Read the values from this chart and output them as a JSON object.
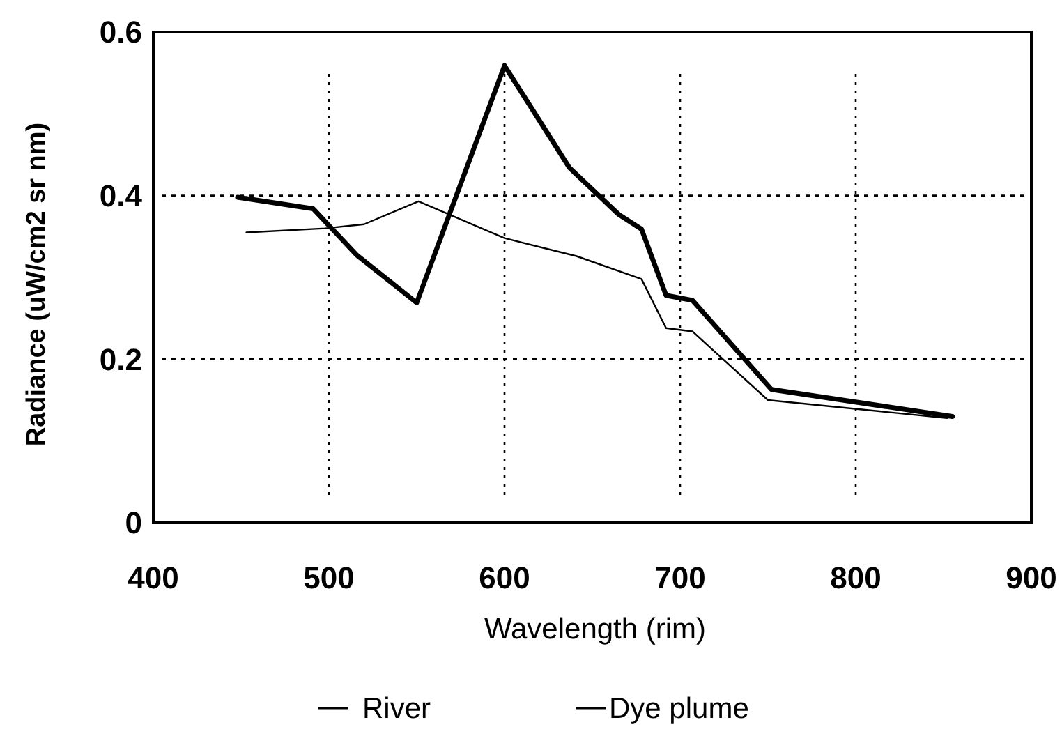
{
  "chart_data": {
    "type": "line",
    "xlabel": "Wavelength (rim)",
    "ylabel": "Radiance (uW/cm2 sr nm)",
    "xlim": [
      400,
      900
    ],
    "xticks": [
      400,
      500,
      600,
      700,
      800,
      900
    ],
    "ylim": [
      0,
      0.6
    ],
    "yticks": [
      0,
      0.2,
      0.4,
      0.6
    ],
    "grid": true,
    "legend": "bottom",
    "line_style": "solid",
    "marker": "none",
    "series": [
      {
        "name": "River",
        "color": "#000000",
        "x": [
          453,
          498,
          520,
          551,
          600,
          641,
          678,
          692,
          707,
          750,
          852
        ],
        "values": [
          0.355,
          0.36,
          0.365,
          0.393,
          0.348,
          0.326,
          0.298,
          0.238,
          0.234,
          0.15,
          0.128
        ]
      },
      {
        "name": "Dye plume",
        "color": "#000000",
        "x": [
          448,
          491,
          516,
          550,
          600,
          637,
          665,
          678,
          692,
          707,
          752,
          855
        ],
        "values": [
          0.398,
          0.384,
          0.327,
          0.269,
          0.559,
          0.434,
          0.377,
          0.359,
          0.278,
          0.272,
          0.163,
          0.13
        ]
      }
    ]
  }
}
